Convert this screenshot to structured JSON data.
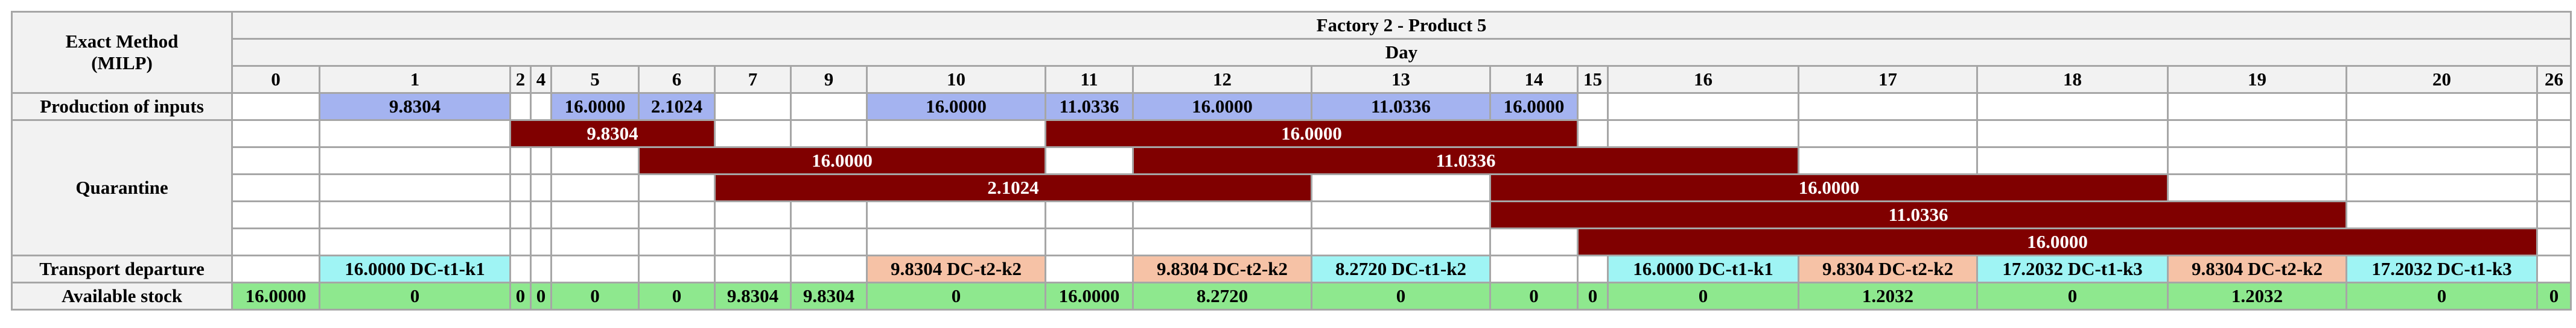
{
  "corner_label": "Exact Method\n(MILP)",
  "title": "Factory 2 - Product 5",
  "day_label": "Day",
  "days": [
    "0",
    "1",
    "2",
    "4",
    "5",
    "6",
    "7",
    "9",
    "10",
    "11",
    "12",
    "13",
    "14",
    "15",
    "16",
    "17",
    "18",
    "19",
    "20",
    "26"
  ],
  "row_labels": {
    "production": "Production of inputs",
    "quarantine": "Quarantine",
    "transport": "Transport departure",
    "stock": "Available stock"
  },
  "production": [
    "",
    "9.8304",
    "",
    "",
    "16.0000",
    "2.1024",
    "",
    "",
    "16.0000",
    "11.0336",
    "16.0000",
    "11.0336",
    "16.0000",
    "",
    "",
    "",
    "",
    "",
    "",
    ""
  ],
  "quarantine_rows": [
    [
      {
        "span": 2,
        "v": ""
      },
      {
        "span": 4,
        "v": "9.8304",
        "q": true
      },
      {
        "span": 3,
        "v": ""
      },
      {
        "span": 4,
        "v": "16.0000",
        "q": true
      },
      {
        "span": 7,
        "v": ""
      }
    ],
    [
      {
        "span": 5,
        "v": ""
      },
      {
        "span": 4,
        "v": "16.0000",
        "q": true
      },
      {
        "span": 1,
        "v": ""
      },
      {
        "span": 5,
        "v": "11.0336",
        "q": true
      },
      {
        "span": 5,
        "v": ""
      }
    ],
    [
      {
        "span": 6,
        "v": ""
      },
      {
        "span": 5,
        "v": "2.1024",
        "q": true
      },
      {
        "span": 1,
        "v": ""
      },
      {
        "span": 5,
        "v": "16.0000",
        "q": true
      },
      {
        "span": 3,
        "v": ""
      }
    ],
    [
      {
        "span": 12,
        "v": ""
      },
      {
        "span": 6,
        "v": "11.0336",
        "q": true
      },
      {
        "span": 2,
        "v": ""
      }
    ],
    [
      {
        "span": 13,
        "v": ""
      },
      {
        "span": 6,
        "v": "16.0000",
        "q": true
      },
      {
        "span": 1,
        "v": ""
      }
    ]
  ],
  "transport": [
    {
      "v": "",
      "c": "white"
    },
    {
      "v": "16.0000 DC-t1-k1",
      "c": "dc1"
    },
    {
      "v": "",
      "c": "white"
    },
    {
      "v": "",
      "c": "white"
    },
    {
      "v": "",
      "c": "white"
    },
    {
      "v": "",
      "c": "white"
    },
    {
      "v": "",
      "c": "white"
    },
    {
      "v": "",
      "c": "white"
    },
    {
      "v": "9.8304 DC-t2-k2",
      "c": "dc2"
    },
    {
      "v": "",
      "c": "white"
    },
    {
      "v": "9.8304 DC-t2-k2",
      "c": "dc2"
    },
    {
      "v": "8.2720 DC-t1-k2",
      "c": "dc1"
    },
    {
      "v": "",
      "c": "white"
    },
    {
      "v": "",
      "c": "white"
    },
    {
      "v": "16.0000 DC-t1-k1",
      "c": "dc1"
    },
    {
      "v": "9.8304 DC-t2-k2",
      "c": "dc2"
    },
    {
      "v": "17.2032 DC-t1-k3",
      "c": "dc1"
    },
    {
      "v": "9.8304 DC-t2-k2",
      "c": "dc2"
    },
    {
      "v": "17.2032 DC-t1-k3",
      "c": "dc1"
    },
    {
      "v": "",
      "c": "white"
    }
  ],
  "stock": [
    "16.0000",
    "0",
    "0",
    "0",
    "0",
    "0",
    "9.8304",
    "9.8304",
    "0",
    "16.0000",
    "8.2720",
    "0",
    "0",
    "0",
    "0",
    "1.2032",
    "0",
    "1.2032",
    "0",
    "0"
  ],
  "colors": {
    "production": "#a4b3f0",
    "quarantine": "#800000",
    "transport_t1": "#9ff4f4",
    "transport_t2": "#f6c2a6",
    "stock": "#8ee88e",
    "header": "#f2f2f2"
  }
}
